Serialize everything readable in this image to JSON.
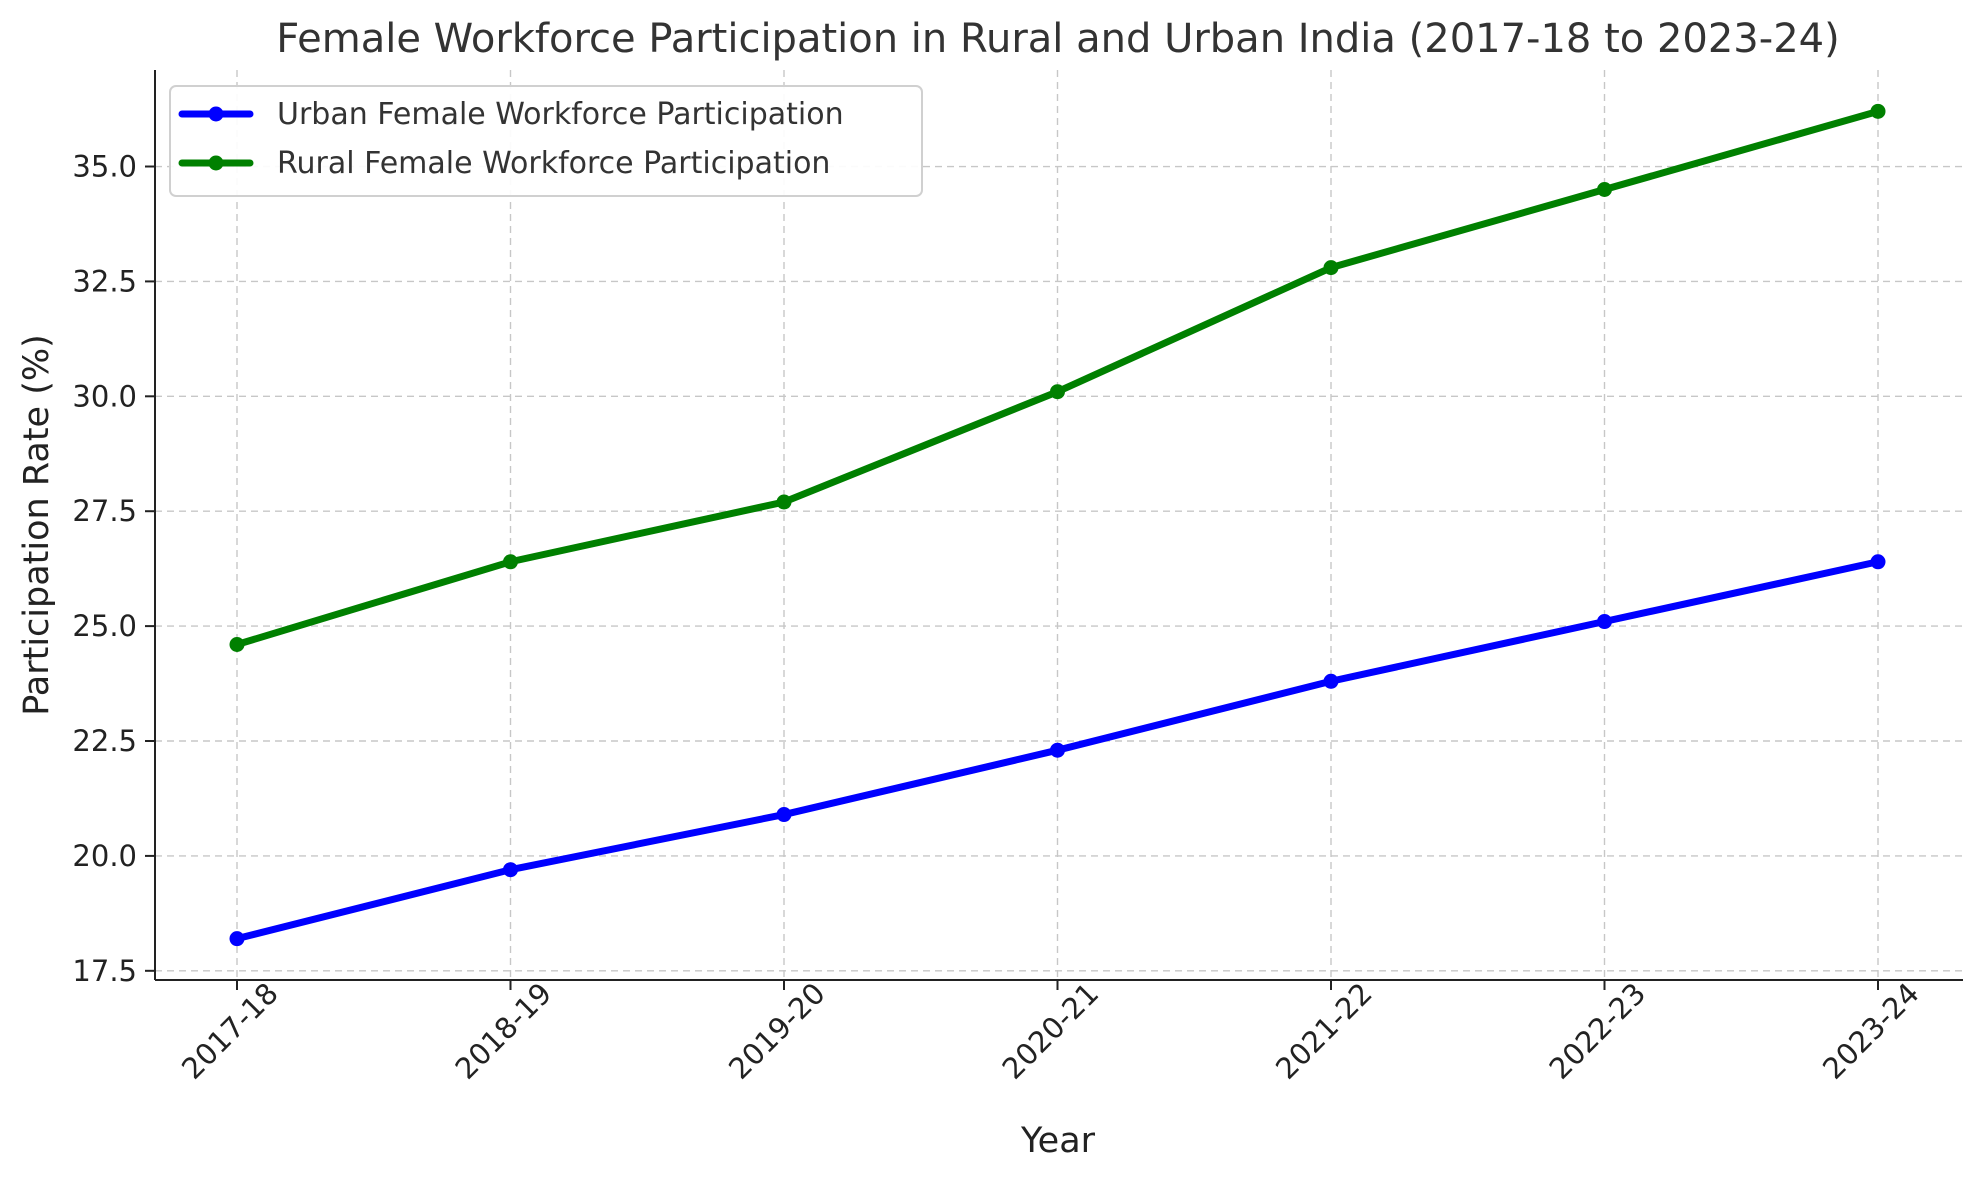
{
  "chart_data": {
    "type": "line",
    "title": "Female Workforce Participation in Rural and Urban India (2017-18 to 2023-24)",
    "xlabel": "Year",
    "ylabel": "Participation Rate (%)",
    "categories": [
      "2017-18",
      "2018-19",
      "2019-20",
      "2020-21",
      "2021-22",
      "2022-23",
      "2023-24"
    ],
    "ylim": [
      17.3,
      37.1
    ],
    "yticks": [
      "17.5",
      "20.0",
      "22.5",
      "25.0",
      "27.5",
      "30.0",
      "32.5",
      "35.0"
    ],
    "grid": true,
    "legend_position": "top-left",
    "series": [
      {
        "name": "Urban Female Workforce Participation",
        "color": "#0000ff",
        "values": [
          18.2,
          19.7,
          20.9,
          22.3,
          23.8,
          25.1,
          26.4
        ]
      },
      {
        "name": "Rural Female Workforce Participation",
        "color": "#008000",
        "values": [
          24.6,
          26.4,
          27.7,
          30.1,
          32.8,
          34.5,
          36.2
        ]
      }
    ]
  }
}
